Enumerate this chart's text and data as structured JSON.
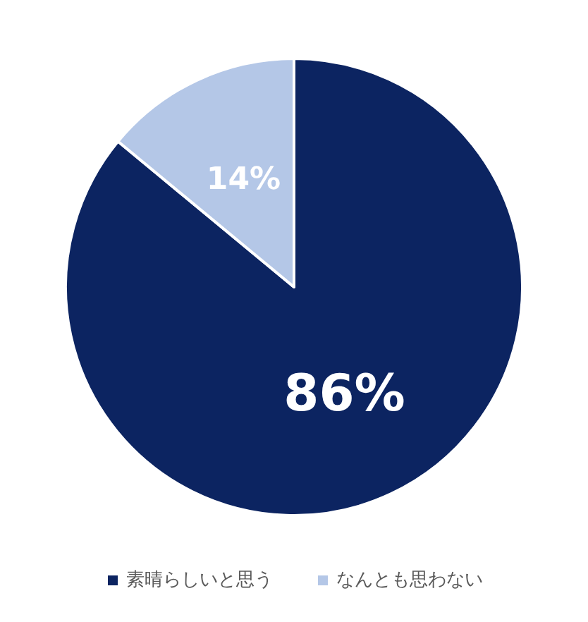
{
  "chart_data": {
    "type": "pie",
    "categories": [
      "素晴らしいと思う",
      "なんとも思わない"
    ],
    "values": [
      86,
      14
    ],
    "colors": [
      "#0c2461",
      "#b4c7e7"
    ],
    "value_labels": [
      "86%",
      "14%"
    ],
    "legend": "bottom"
  }
}
